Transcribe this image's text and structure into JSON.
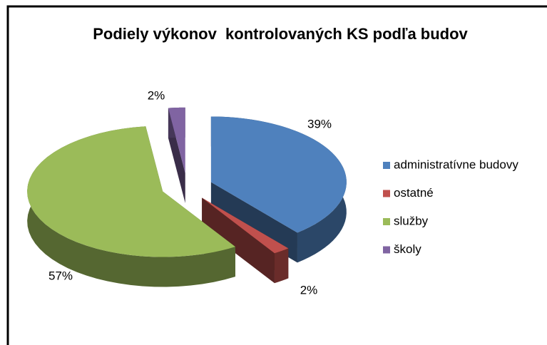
{
  "chart_data": {
    "type": "pie",
    "title": "Podiely výkonov  kontrolovaných KS podľa budov",
    "categories": [
      "administratívne budovy",
      "ostatné",
      "služby",
      "školy"
    ],
    "values": [
      39,
      2,
      57,
      2
    ],
    "value_labels": [
      "39%",
      "2%",
      "57%",
      "2%"
    ],
    "colors": [
      "#4f81bd",
      "#c0504d",
      "#9bbb59",
      "#8064a2"
    ],
    "legend": "right"
  }
}
